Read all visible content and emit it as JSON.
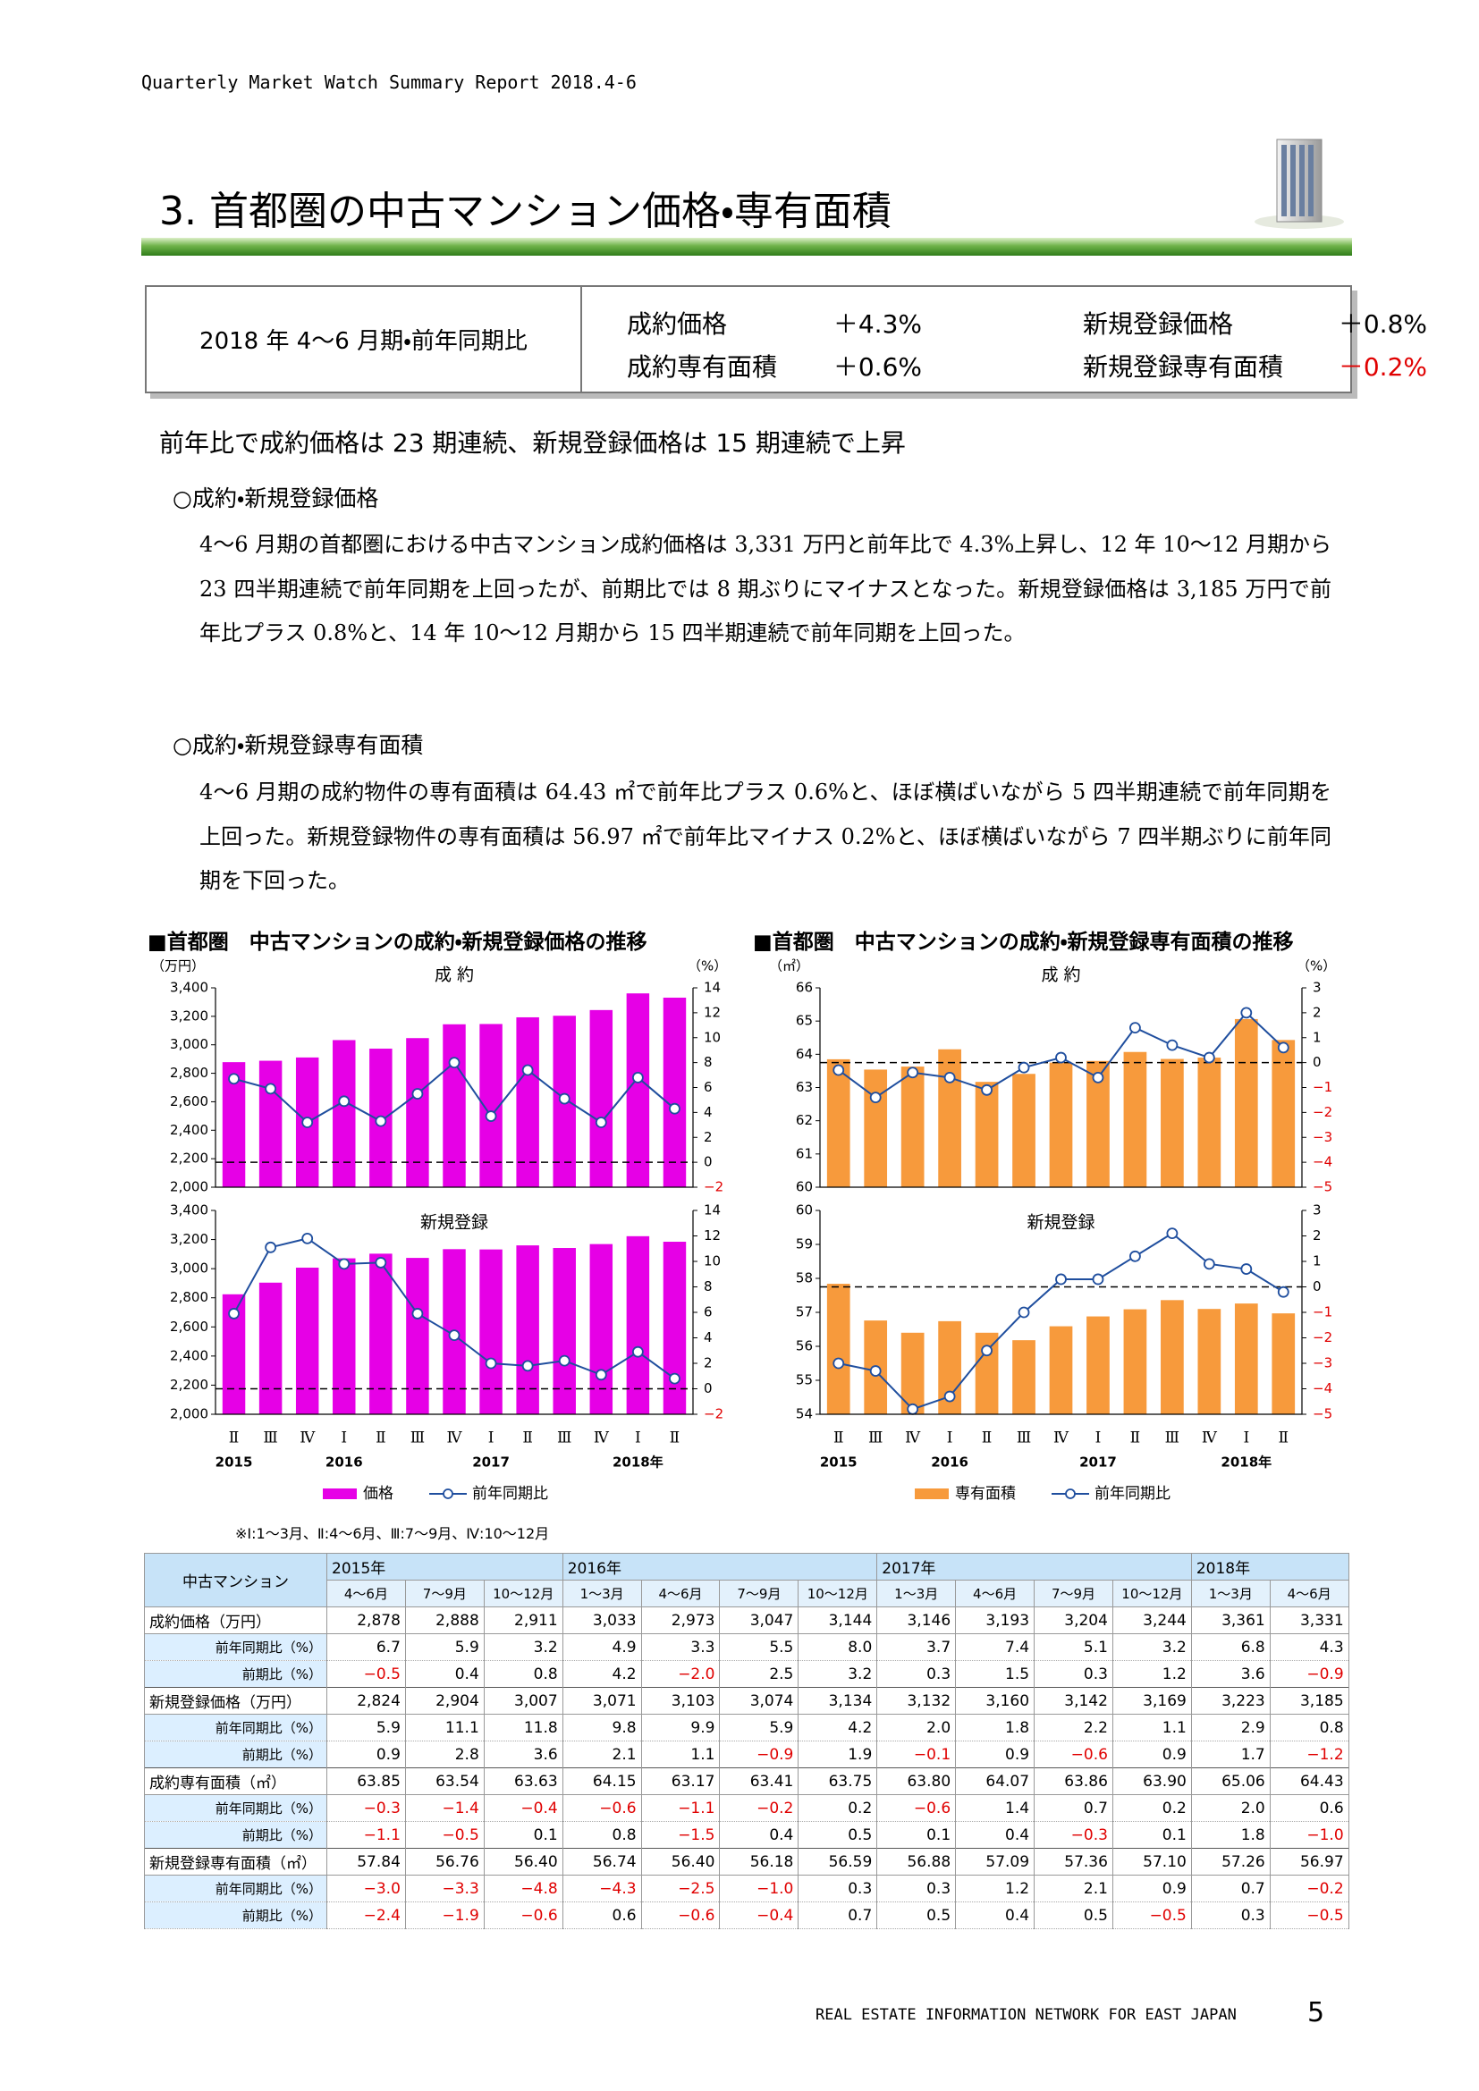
{
  "header": "Quarterly Market Watch Summary Report 2018.4-6",
  "title": "3. 首都圏の中古マンション価格・専有面積",
  "summary": {
    "label": "2018 年 4〜6 月期・前年同期比",
    "items": [
      {
        "label": "成約価格",
        "value": "＋4.3%"
      },
      {
        "label": "新規登録価格",
        "value": "＋0.8%"
      },
      {
        "label": "成約専有面積",
        "value": "＋0.6%"
      },
      {
        "label": "新規登録専有面積",
        "value": "－0.2%"
      }
    ]
  },
  "headline": "前年比で成約価格は 23 期連続、新規登録価格は 15 期連続で上昇",
  "sections": [
    {
      "heading": "○成約・新規登録価格",
      "text": "4〜6 月期の首都圏における中古マンション成約価格は 3,331 万円と前年比で 4.3%上昇し、12 年 10〜12 月期から 23 四半期連続で前年同期を上回ったが、前期比では 8 期ぶりにマイナスとなった。新規登録価格は 3,185 万円で前年比プラス 0.8%と、14 年 10〜12 月期から 15 四半期連続で前年同期を上回った。"
    },
    {
      "heading": "○成約・新規登録専有面積",
      "text": "4〜6 月期の成約物件の専有面積は 64.43 ㎡で前年比プラス 0.6%と、ほぼ横ばいながら 5 四半期連続で前年同期を上回った。新規登録物件の専有面積は 56.97 ㎡で前年比マイナス 0.2%と、ほぼ横ばいながら 7 四半期ぶりに前年同期を下回った。"
    }
  ],
  "chart_titles": [
    "■首都圏　中古マンションの成約・新規登録価格の推移",
    "■首都圏　中古マンションの成約・新規登録専有面積の推移"
  ],
  "chart_data": [
    {
      "type": "combo",
      "subtitle": "成 約",
      "y_unit": "（万円）",
      "y2_unit": "（%）",
      "ylim": [
        2000,
        3400
      ],
      "yticks": [
        {
          "value": 2000,
          "label": "2,000"
        },
        {
          "value": 2200,
          "label": "2,200"
        },
        {
          "value": 2400,
          "label": "2,400"
        },
        {
          "value": 2600,
          "label": "2,600"
        },
        {
          "value": 2800,
          "label": "2,800"
        },
        {
          "value": 3000,
          "label": "3,000"
        },
        {
          "value": 3200,
          "label": "3,200"
        },
        {
          "value": 3400,
          "label": "3,400"
        }
      ],
      "y2lim": [
        -2,
        14
      ],
      "y2ticks": [
        {
          "value": -2,
          "label": "−2"
        },
        0,
        2,
        4,
        6,
        8,
        10,
        12,
        14
      ],
      "series": [
        {
          "color": "#e600e6",
          "values": [
            2878,
            2888,
            2911,
            3033,
            2973,
            3047,
            3144,
            3146,
            3193,
            3204,
            3244,
            3361,
            3331
          ]
        },
        {
          "color": "#1f4e9e",
          "axis": "y2",
          "values": [
            6.7,
            5.9,
            3.2,
            4.9,
            3.3,
            5.5,
            8.0,
            3.7,
            7.4,
            5.1,
            3.2,
            6.8,
            4.3
          ]
        }
      ]
    },
    {
      "type": "combo",
      "subtitle": "新規登録",
      "categories": [
        "Ⅱ",
        "Ⅲ",
        "Ⅳ",
        "Ⅰ",
        "Ⅱ",
        "Ⅲ",
        "Ⅳ",
        "Ⅰ",
        "Ⅱ",
        "Ⅲ",
        "Ⅳ",
        "Ⅰ",
        "Ⅱ"
      ],
      "x_groups": [
        "2015",
        null,
        null,
        "2016",
        null,
        null,
        null,
        "2017",
        null,
        null,
        null,
        "2018年",
        null
      ],
      "ylim": [
        2000,
        3400
      ],
      "yticks": [
        {
          "value": 2000,
          "label": "2,000"
        },
        {
          "value": 2200,
          "label": "2,200"
        },
        {
          "value": 2400,
          "label": "2,400"
        },
        {
          "value": 2600,
          "label": "2,600"
        },
        {
          "value": 2800,
          "label": "2,800"
        },
        {
          "value": 3000,
          "label": "3,000"
        },
        {
          "value": 3200,
          "label": "3,200"
        },
        {
          "value": 3400,
          "label": "3,400"
        }
      ],
      "y2lim": [
        -2,
        14
      ],
      "y2ticks": [
        {
          "value": -2,
          "label": "−2"
        },
        0,
        2,
        4,
        6,
        8,
        10,
        12,
        14
      ],
      "series": [
        {
          "name": "価格",
          "color": "#e600e6",
          "values": [
            2824,
            2904,
            3007,
            3071,
            3103,
            3074,
            3134,
            3132,
            3160,
            3142,
            3169,
            3223,
            3185
          ]
        },
        {
          "name": "前年同期比",
          "color": "#1f4e9e",
          "axis": "y2",
          "values": [
            5.9,
            11.1,
            11.8,
            9.8,
            9.9,
            5.9,
            4.2,
            2.0,
            1.8,
            2.2,
            1.1,
            2.9,
            0.8
          ]
        }
      ]
    },
    {
      "type": "combo",
      "subtitle": "成 約",
      "y_unit": "（㎡）",
      "y2_unit": "（%）",
      "ylim": [
        60,
        66
      ],
      "yticks": [
        60,
        61,
        62,
        63,
        64,
        65,
        66
      ],
      "y2lim": [
        -5,
        3
      ],
      "y2ticks": [
        {
          "value": -5,
          "label": "−5"
        },
        {
          "value": -4,
          "label": "−4"
        },
        {
          "value": -3,
          "label": "−3"
        },
        {
          "value": -2,
          "label": "−2"
        },
        {
          "value": -1,
          "label": "−1"
        },
        0,
        1,
        2,
        3
      ],
      "series": [
        {
          "color": "#f79a3c",
          "values": [
            63.85,
            63.54,
            63.63,
            64.15,
            63.17,
            63.41,
            63.75,
            63.8,
            64.07,
            63.86,
            63.9,
            65.06,
            64.43
          ]
        },
        {
          "color": "#1f4e9e",
          "axis": "y2",
          "values": [
            -0.3,
            -1.4,
            -0.4,
            -0.6,
            -1.1,
            -0.2,
            0.2,
            -0.6,
            1.4,
            0.7,
            0.2,
            2.0,
            0.6
          ]
        }
      ]
    },
    {
      "type": "combo",
      "subtitle": "新規登録",
      "categories": [
        "Ⅱ",
        "Ⅲ",
        "Ⅳ",
        "Ⅰ",
        "Ⅱ",
        "Ⅲ",
        "Ⅳ",
        "Ⅰ",
        "Ⅱ",
        "Ⅲ",
        "Ⅳ",
        "Ⅰ",
        "Ⅱ"
      ],
      "x_groups": [
        "2015",
        null,
        null,
        "2016",
        null,
        null,
        null,
        "2017",
        null,
        null,
        null,
        "2018年",
        null
      ],
      "ylim": [
        54,
        60
      ],
      "yticks": [
        54,
        55,
        56,
        57,
        58,
        59,
        60
      ],
      "y2lim": [
        -5,
        3
      ],
      "y2ticks": [
        {
          "value": -5,
          "label": "−5"
        },
        {
          "value": -4,
          "label": "−4"
        },
        {
          "value": -3,
          "label": "−3"
        },
        {
          "value": -2,
          "label": "−2"
        },
        {
          "value": -1,
          "label": "−1"
        },
        0,
        1,
        2,
        3
      ],
      "series": [
        {
          "name": "専有面積",
          "color": "#f79a3c",
          "values": [
            57.84,
            56.76,
            56.4,
            56.74,
            56.4,
            56.18,
            56.59,
            56.88,
            57.09,
            57.36,
            57.1,
            57.26,
            56.97
          ]
        },
        {
          "name": "前年同期比",
          "color": "#1f4e9e",
          "axis": "y2",
          "values": [
            -3.0,
            -3.3,
            -4.8,
            -4.3,
            -2.5,
            -1.0,
            0.3,
            0.3,
            1.2,
            2.1,
            0.9,
            0.7,
            -0.2
          ]
        }
      ]
    }
  ],
  "footnote": "※Ⅰ:1〜3月、Ⅱ:4〜6月、Ⅲ:7〜9月、Ⅳ:10〜12月",
  "table": {
    "corner": "中古マンション",
    "years": [
      "2015年",
      null,
      null,
      "2016年",
      null,
      null,
      null,
      "2017年",
      null,
      null,
      null,
      "2018年",
      null
    ],
    "columns": [
      "4〜6月",
      "7〜9月",
      "10〜12月",
      "1〜3月",
      "4〜6月",
      "7〜9月",
      "10〜12月",
      "1〜3月",
      "4〜6月",
      "7〜9月",
      "10〜12月",
      "1〜3月",
      "4〜6月"
    ],
    "groups": [
      {
        "label": "成約価格（万円）",
        "values": [
          "2,878",
          "2,888",
          "2,911",
          "3,033",
          "2,973",
          "3,047",
          "3,144",
          "3,146",
          "3,193",
          "3,204",
          "3,244",
          "3,361",
          "3,331"
        ],
        "sub": [
          {
            "label": "前年同期比（%）",
            "values": [
              "6.7",
              "5.9",
              "3.2",
              "4.9",
              "3.3",
              "5.5",
              "8.0",
              "3.7",
              "7.4",
              "5.1",
              "3.2",
              "6.8",
              "4.3"
            ]
          },
          {
            "label": "前期比（%）",
            "values": [
              "−0.5",
              "0.4",
              "0.8",
              "4.2",
              "−2.0",
              "2.5",
              "3.2",
              "0.3",
              "1.5",
              "0.3",
              "1.2",
              "3.6",
              "−0.9"
            ]
          }
        ]
      },
      {
        "label": "新規登録価格（万円）",
        "values": [
          "2,824",
          "2,904",
          "3,007",
          "3,071",
          "3,103",
          "3,074",
          "3,134",
          "3,132",
          "3,160",
          "3,142",
          "3,169",
          "3,223",
          "3,185"
        ],
        "sub": [
          {
            "label": "前年同期比（%）",
            "values": [
              "5.9",
              "11.1",
              "11.8",
              "9.8",
              "9.9",
              "5.9",
              "4.2",
              "2.0",
              "1.8",
              "2.2",
              "1.1",
              "2.9",
              "0.8"
            ]
          },
          {
            "label": "前期比（%）",
            "values": [
              "0.9",
              "2.8",
              "3.6",
              "2.1",
              "1.1",
              "−0.9",
              "1.9",
              "−0.1",
              "0.9",
              "−0.6",
              "0.9",
              "1.7",
              "−1.2"
            ]
          }
        ]
      },
      {
        "label": "成約専有面積（㎡）",
        "values": [
          "63.85",
          "63.54",
          "63.63",
          "64.15",
          "63.17",
          "63.41",
          "63.75",
          "63.80",
          "64.07",
          "63.86",
          "63.90",
          "65.06",
          "64.43"
        ],
        "sub": [
          {
            "label": "前年同期比（%）",
            "values": [
              "−0.3",
              "−1.4",
              "−0.4",
              "−0.6",
              "−1.1",
              "−0.2",
              "0.2",
              "−0.6",
              "1.4",
              "0.7",
              "0.2",
              "2.0",
              "0.6"
            ]
          },
          {
            "label": "前期比（%）",
            "values": [
              "−1.1",
              "−0.5",
              "0.1",
              "0.8",
              "−1.5",
              "0.4",
              "0.5",
              "0.1",
              "0.4",
              "−0.3",
              "0.1",
              "1.8",
              "−1.0"
            ]
          }
        ]
      },
      {
        "label": "新規登録専有面積（㎡）",
        "values": [
          "57.84",
          "56.76",
          "56.40",
          "56.74",
          "56.40",
          "56.18",
          "56.59",
          "56.88",
          "57.09",
          "57.36",
          "57.10",
          "57.26",
          "56.97"
        ],
        "sub": [
          {
            "label": "前年同期比（%）",
            "values": [
              "−3.0",
              "−3.3",
              "−4.8",
              "−4.3",
              "−2.5",
              "−1.0",
              "0.3",
              "0.3",
              "1.2",
              "2.1",
              "0.9",
              "0.7",
              "−0.2"
            ]
          },
          {
            "label": "前期比（%）",
            "values": [
              "−2.4",
              "−1.9",
              "−0.6",
              "0.6",
              "−0.6",
              "−0.4",
              "0.7",
              "0.5",
              "0.4",
              "0.5",
              "−0.5",
              "0.3",
              "−0.5"
            ]
          }
        ]
      }
    ]
  },
  "footer": "REAL ESTATE INFORMATION NETWORK FOR EAST JAPAN",
  "page_number": "5"
}
